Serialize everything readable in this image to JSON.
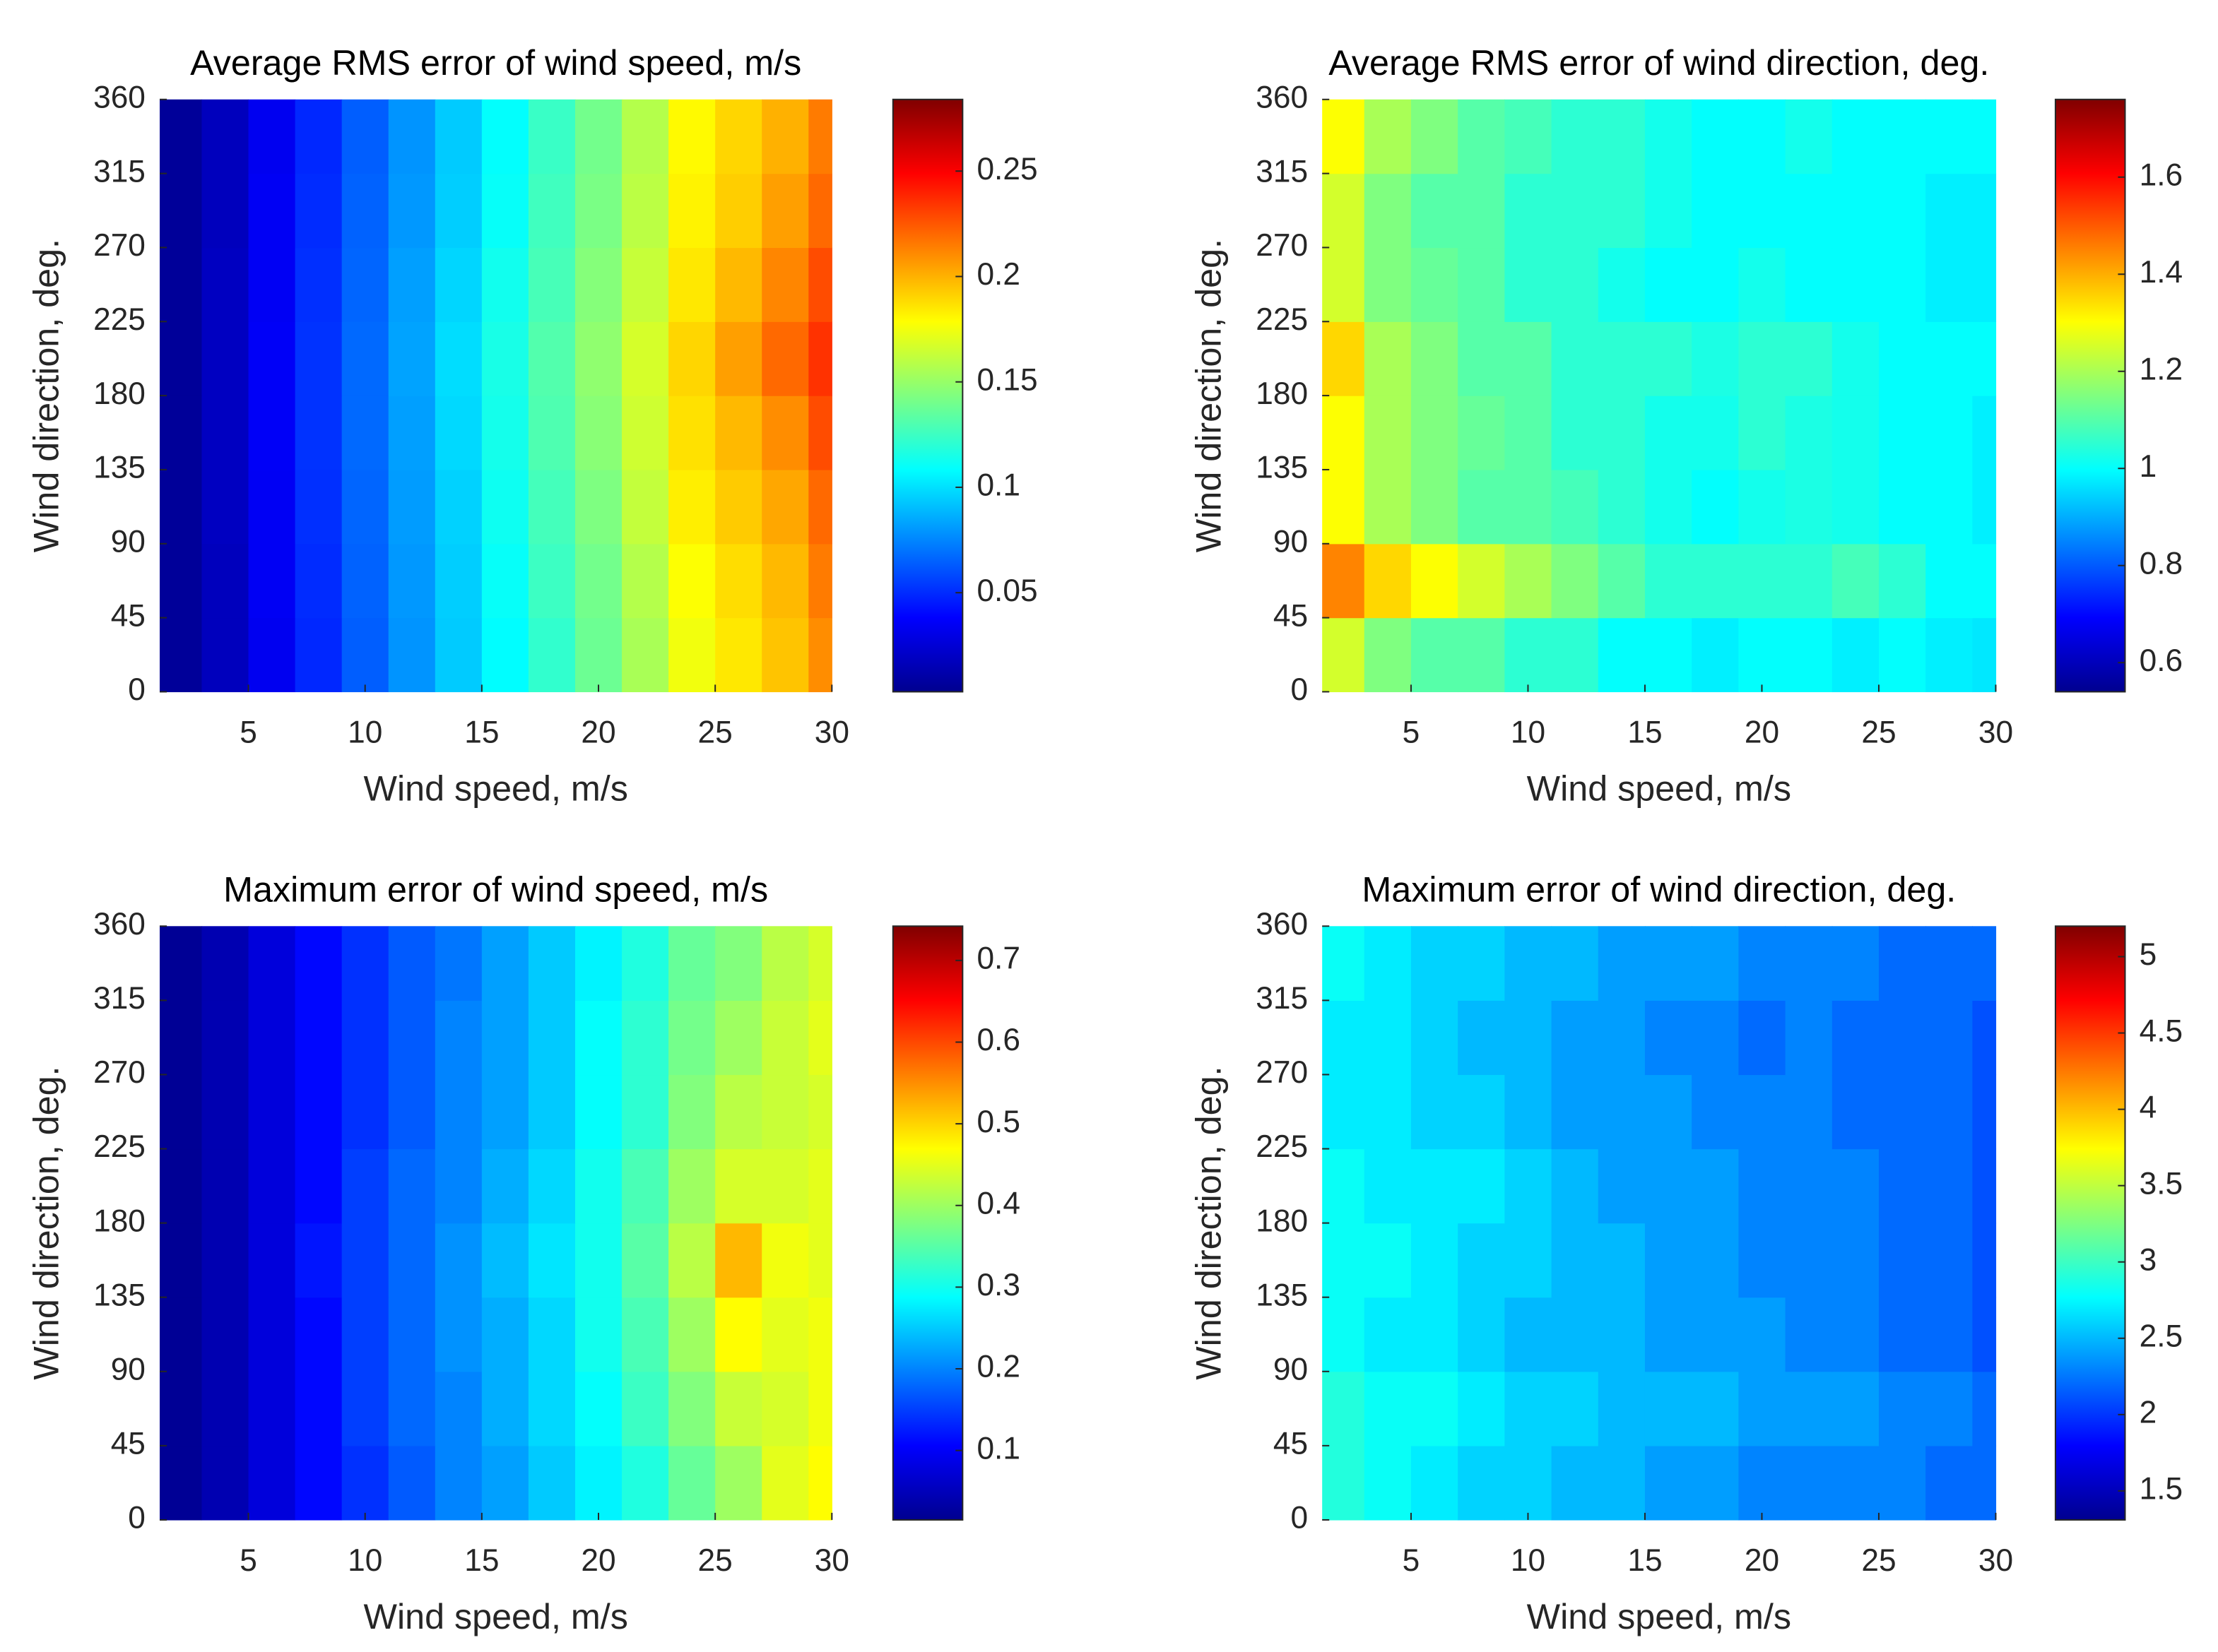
{
  "chart_data": [
    {
      "type": "heatmap",
      "title": "Average RMS error of wind speed, m/s",
      "xlabel": "Wind speed, m/s",
      "ylabel": "Wind direction, deg.",
      "colormap": "jet",
      "x": [
        2,
        4,
        6,
        8,
        10,
        12,
        14,
        16,
        18,
        20,
        22,
        24,
        26,
        28,
        30
      ],
      "y": [
        22.5,
        67.5,
        112.5,
        157.5,
        202.5,
        247.5,
        292.5,
        337.5
      ],
      "values": [
        [
          0.01,
          0.02,
          0.034,
          0.049,
          0.064,
          0.079,
          0.094,
          0.108,
          0.122,
          0.138,
          0.155,
          0.175,
          0.185,
          0.195,
          0.21
        ],
        [
          0.01,
          0.02,
          0.035,
          0.05,
          0.065,
          0.08,
          0.095,
          0.11,
          0.125,
          0.14,
          0.158,
          0.178,
          0.188,
          0.198,
          0.215
        ],
        [
          0.01,
          0.021,
          0.035,
          0.051,
          0.066,
          0.081,
          0.096,
          0.112,
          0.127,
          0.143,
          0.162,
          0.183,
          0.193,
          0.203,
          0.22
        ],
        [
          0.01,
          0.021,
          0.036,
          0.052,
          0.067,
          0.082,
          0.098,
          0.114,
          0.13,
          0.146,
          0.165,
          0.187,
          0.198,
          0.21,
          0.228
        ],
        [
          0.01,
          0.021,
          0.036,
          0.052,
          0.067,
          0.083,
          0.099,
          0.115,
          0.131,
          0.148,
          0.167,
          0.19,
          0.205,
          0.22,
          0.235
        ],
        [
          0.01,
          0.021,
          0.035,
          0.051,
          0.066,
          0.082,
          0.097,
          0.113,
          0.128,
          0.145,
          0.163,
          0.185,
          0.198,
          0.212,
          0.228
        ],
        [
          0.01,
          0.02,
          0.035,
          0.05,
          0.065,
          0.08,
          0.095,
          0.11,
          0.126,
          0.142,
          0.16,
          0.182,
          0.192,
          0.205,
          0.22
        ],
        [
          0.01,
          0.02,
          0.034,
          0.049,
          0.064,
          0.079,
          0.094,
          0.109,
          0.124,
          0.14,
          0.158,
          0.18,
          0.19,
          0.2,
          0.215
        ]
      ],
      "xlim": [
        1.2,
        30
      ],
      "ylim": [
        0,
        360
      ],
      "xticks": [
        5,
        10,
        15,
        20,
        25,
        30
      ],
      "yticks": [
        0,
        45,
        90,
        135,
        180,
        225,
        270,
        315,
        360
      ],
      "clim": [
        0.003,
        0.284
      ],
      "cticks": [
        0.05,
        0.1,
        0.15,
        0.2,
        0.25
      ]
    },
    {
      "type": "heatmap",
      "title": "Average RMS error of wind direction, deg.",
      "xlabel": "Wind speed, m/s",
      "ylabel": "Wind direction, deg.",
      "colormap": "jet",
      "x": [
        2,
        4,
        6,
        8,
        10,
        12,
        14,
        16,
        18,
        20,
        22,
        24,
        26,
        28,
        30
      ],
      "y": [
        22.5,
        67.5,
        112.5,
        157.5,
        202.5,
        247.5,
        292.5,
        337.5
      ],
      "values": [
        [
          1.25,
          1.15,
          1.1,
          1.1,
          1.05,
          1.05,
          1.0,
          1.0,
          0.98,
          1.0,
          1.0,
          0.98,
          1.0,
          0.98,
          0.97
        ],
        [
          1.45,
          1.35,
          1.3,
          1.25,
          1.2,
          1.15,
          1.1,
          1.05,
          1.05,
          1.05,
          1.05,
          1.08,
          1.05,
          1.0,
          1.0
        ],
        [
          1.3,
          1.2,
          1.15,
          1.1,
          1.1,
          1.08,
          1.05,
          1.02,
          1.0,
          1.02,
          1.03,
          1.02,
          1.0,
          1.0,
          0.98
        ],
        [
          1.3,
          1.2,
          1.15,
          1.12,
          1.1,
          1.05,
          1.05,
          1.02,
          1.02,
          1.05,
          1.03,
          1.02,
          1.0,
          1.0,
          0.98
        ],
        [
          1.35,
          1.2,
          1.15,
          1.1,
          1.1,
          1.05,
          1.05,
          1.05,
          1.03,
          1.05,
          1.05,
          1.02,
          1.0,
          1.0,
          1.0
        ],
        [
          1.25,
          1.15,
          1.12,
          1.1,
          1.05,
          1.05,
          1.02,
          1.0,
          1.0,
          1.02,
          1.0,
          1.0,
          1.0,
          0.98,
          0.98
        ],
        [
          1.25,
          1.15,
          1.1,
          1.1,
          1.05,
          1.05,
          1.05,
          1.02,
          1.0,
          1.0,
          1.0,
          1.0,
          1.0,
          0.98,
          0.98
        ],
        [
          1.3,
          1.2,
          1.15,
          1.1,
          1.08,
          1.05,
          1.05,
          1.02,
          1.0,
          1.0,
          1.02,
          1.0,
          1.0,
          1.0,
          1.0
        ]
      ],
      "xlim": [
        1.2,
        30
      ],
      "ylim": [
        0,
        360
      ],
      "xticks": [
        5,
        10,
        15,
        20,
        25,
        30
      ],
      "yticks": [
        0,
        45,
        90,
        135,
        180,
        225,
        270,
        315,
        360
      ],
      "clim": [
        0.54,
        1.76
      ],
      "cticks": [
        0.6,
        0.8,
        1,
        1.2,
        1.4,
        1.6
      ]
    },
    {
      "type": "heatmap",
      "title": "Maximum error of wind speed, m/s",
      "xlabel": "Wind speed, m/s",
      "ylabel": "Wind direction, deg.",
      "colormap": "jet",
      "x": [
        2,
        4,
        6,
        8,
        10,
        12,
        14,
        16,
        18,
        20,
        22,
        24,
        26,
        28,
        30
      ],
      "y": [
        22.5,
        67.5,
        112.5,
        157.5,
        202.5,
        247.5,
        292.5,
        337.5
      ],
      "values": [
        [
          0.03,
          0.05,
          0.08,
          0.11,
          0.14,
          0.17,
          0.2,
          0.22,
          0.25,
          0.28,
          0.31,
          0.36,
          0.4,
          0.45,
          0.47
        ],
        [
          0.03,
          0.05,
          0.08,
          0.11,
          0.15,
          0.18,
          0.2,
          0.23,
          0.26,
          0.29,
          0.33,
          0.38,
          0.43,
          0.44,
          0.46
        ],
        [
          0.03,
          0.05,
          0.08,
          0.11,
          0.15,
          0.18,
          0.21,
          0.23,
          0.26,
          0.3,
          0.34,
          0.4,
          0.47,
          0.45,
          0.46
        ],
        [
          0.03,
          0.05,
          0.08,
          0.12,
          0.15,
          0.18,
          0.21,
          0.24,
          0.27,
          0.3,
          0.35,
          0.42,
          0.52,
          0.46,
          0.45
        ],
        [
          0.03,
          0.05,
          0.08,
          0.11,
          0.15,
          0.18,
          0.2,
          0.23,
          0.26,
          0.3,
          0.34,
          0.4,
          0.44,
          0.44,
          0.45
        ],
        [
          0.03,
          0.05,
          0.08,
          0.11,
          0.14,
          0.17,
          0.2,
          0.22,
          0.25,
          0.29,
          0.32,
          0.38,
          0.42,
          0.43,
          0.44
        ],
        [
          0.03,
          0.05,
          0.08,
          0.11,
          0.14,
          0.17,
          0.2,
          0.22,
          0.25,
          0.29,
          0.32,
          0.37,
          0.4,
          0.43,
          0.45
        ],
        [
          0.03,
          0.05,
          0.08,
          0.11,
          0.14,
          0.17,
          0.19,
          0.22,
          0.25,
          0.28,
          0.31,
          0.36,
          0.38,
          0.42,
          0.44
        ]
      ],
      "xlim": [
        1.2,
        30
      ],
      "ylim": [
        0,
        360
      ],
      "xticks": [
        5,
        10,
        15,
        20,
        25,
        30
      ],
      "yticks": [
        0,
        45,
        90,
        135,
        180,
        225,
        270,
        315,
        360
      ],
      "clim": [
        0.015,
        0.742
      ],
      "cticks": [
        0.1,
        0.2,
        0.3,
        0.4,
        0.5,
        0.6,
        0.7
      ]
    },
    {
      "type": "heatmap",
      "title": "Maximum error of wind direction, deg.",
      "xlabel": "Wind speed, m/s",
      "ylabel": "Wind direction, deg.",
      "colormap": "jet",
      "x": [
        2,
        4,
        6,
        8,
        10,
        12,
        14,
        16,
        18,
        20,
        22,
        24,
        26,
        28,
        30
      ],
      "y": [
        22.5,
        67.5,
        112.5,
        157.5,
        202.5,
        247.5,
        292.5,
        337.5
      ],
      "values": [
        [
          2.9,
          2.8,
          2.7,
          2.6,
          2.6,
          2.5,
          2.5,
          2.4,
          2.4,
          2.3,
          2.3,
          2.3,
          2.3,
          2.2,
          2.2
        ],
        [
          2.9,
          2.8,
          2.8,
          2.7,
          2.6,
          2.6,
          2.5,
          2.5,
          2.5,
          2.4,
          2.4,
          2.4,
          2.3,
          2.3,
          2.2
        ],
        [
          2.8,
          2.7,
          2.7,
          2.6,
          2.5,
          2.5,
          2.5,
          2.4,
          2.4,
          2.4,
          2.3,
          2.3,
          2.2,
          2.2,
          2.1
        ],
        [
          2.8,
          2.8,
          2.7,
          2.6,
          2.6,
          2.5,
          2.5,
          2.4,
          2.4,
          2.3,
          2.3,
          2.3,
          2.2,
          2.2,
          2.1
        ],
        [
          2.8,
          2.7,
          2.7,
          2.7,
          2.6,
          2.5,
          2.4,
          2.4,
          2.4,
          2.3,
          2.3,
          2.3,
          2.2,
          2.2,
          2.1
        ],
        [
          2.7,
          2.7,
          2.6,
          2.6,
          2.5,
          2.4,
          2.4,
          2.4,
          2.3,
          2.3,
          2.3,
          2.2,
          2.2,
          2.2,
          2.1
        ],
        [
          2.7,
          2.7,
          2.6,
          2.5,
          2.5,
          2.4,
          2.4,
          2.3,
          2.3,
          2.2,
          2.3,
          2.2,
          2.2,
          2.2,
          2.1
        ],
        [
          2.8,
          2.7,
          2.6,
          2.6,
          2.5,
          2.5,
          2.4,
          2.4,
          2.4,
          2.3,
          2.3,
          2.3,
          2.2,
          2.2,
          2.2
        ]
      ],
      "xlim": [
        1.2,
        30
      ],
      "ylim": [
        0,
        360
      ],
      "xticks": [
        5,
        10,
        15,
        20,
        25,
        30
      ],
      "yticks": [
        0,
        45,
        90,
        135,
        180,
        225,
        270,
        315,
        360
      ],
      "clim": [
        1.31,
        5.2
      ],
      "cticks": [
        1.5,
        2,
        2.5,
        3,
        3.5,
        4,
        4.5,
        5
      ]
    }
  ]
}
